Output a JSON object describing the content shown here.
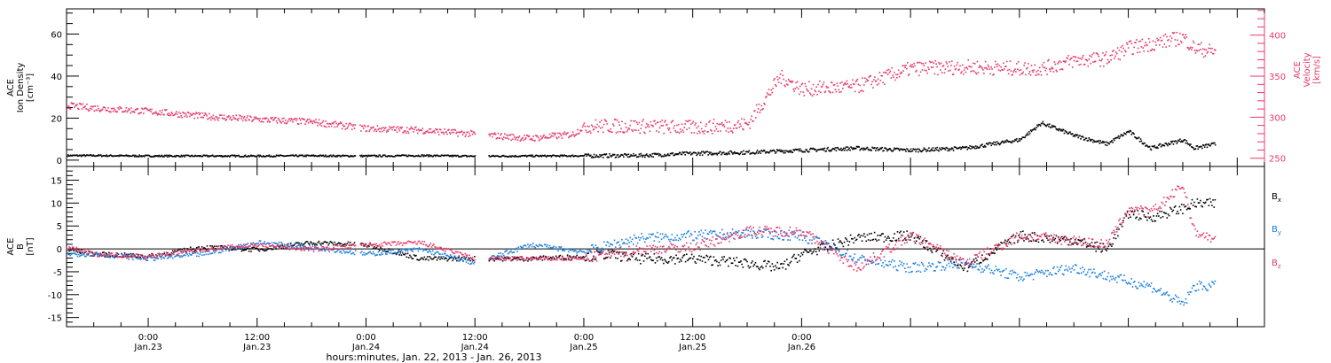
{
  "chart_data": [
    {
      "type": "scatter",
      "panel": "top",
      "left_axis": {
        "label_lines": [
          "ACE",
          "Ion Density",
          "[cm⁻³]"
        ],
        "ylim": [
          -3,
          72
        ],
        "ticks": [
          0,
          20,
          40,
          60
        ],
        "tick_labels": [
          "0",
          "20",
          "40",
          "60"
        ],
        "color": "#000000"
      },
      "right_axis": {
        "label_lines": [
          "ACE",
          "Velocity",
          "[km/s]"
        ],
        "ylim": [
          240,
          432
        ],
        "ticks": [
          250,
          300,
          350,
          400
        ],
        "tick_labels": [
          "250",
          "300",
          "350",
          "400"
        ],
        "color": "#e8396a"
      },
      "series": [
        {
          "axis": "left",
          "color": "#000000",
          "x": [
            -0.375,
            -0.25,
            0,
            0.25,
            0.5,
            0.75,
            1,
            1.25,
            1.5,
            1.75,
            2.0,
            2.25,
            2.5,
            2.75,
            3.0,
            3.25,
            3.5,
            3.75,
            4.0,
            4.1,
            4.25,
            4.4,
            4.5,
            4.6,
            4.75,
            4.8,
            4.9
          ],
          "values": [
            2.5,
            2.5,
            2.3,
            2.3,
            2.3,
            2.4,
            2.3,
            2.5,
            2.2,
            2.3,
            2.4,
            2.5,
            3.5,
            4,
            5,
            6,
            5,
            6,
            10,
            18,
            12,
            8,
            14,
            6,
            10,
            6,
            8
          ]
        },
        {
          "axis": "right",
          "color": "#e8396a",
          "x": [
            -0.375,
            -0.25,
            0,
            0.25,
            0.5,
            0.75,
            1,
            1.25,
            1.5,
            1.75,
            1.95,
            2.0,
            2.25,
            2.5,
            2.75,
            2.9,
            3.0,
            3.25,
            3.5,
            3.75,
            4.0,
            4.1,
            4.25,
            4.4,
            4.5,
            4.6,
            4.75,
            4.8,
            4.9
          ],
          "values": [
            315,
            312,
            308,
            302,
            298,
            295,
            287,
            285,
            280,
            275,
            280,
            290,
            290,
            288,
            292,
            350,
            335,
            338,
            360,
            362,
            360,
            360,
            370,
            372,
            385,
            390,
            398,
            385,
            380
          ]
        }
      ],
      "gaps": [
        [
          0.95,
          0.97
        ],
        [
          1.5,
          1.56
        ]
      ],
      "x_axis": {
        "xlim": [
          -0.375,
          5.125
        ]
      }
    },
    {
      "type": "scatter",
      "panel": "bottom",
      "left_axis": {
        "label_lines": [
          "ACE",
          "B",
          "[nT]"
        ],
        "ylim": [
          -17,
          18
        ],
        "ticks": [
          -15,
          -10,
          -5,
          0,
          5,
          10,
          15
        ],
        "tick_labels": [
          "-15",
          "-10",
          "-5",
          "0",
          "5",
          "10",
          "15"
        ]
      },
      "zero_line": true,
      "series": [
        {
          "name": "Bx",
          "label": "B",
          "sub": "x",
          "color": "#000000",
          "x": [
            -0.375,
            -0.25,
            0,
            0.25,
            0.5,
            0.75,
            1,
            1.25,
            1.5,
            1.75,
            2.0,
            2.1,
            2.25,
            2.5,
            2.75,
            2.9,
            3.0,
            3.25,
            3.5,
            3.75,
            4.0,
            4.25,
            4.4,
            4.5,
            4.6,
            4.75,
            4.8,
            4.9
          ],
          "values": [
            0,
            -1,
            -1.5,
            0.5,
            0,
            1.5,
            1,
            -2,
            -2,
            -2,
            -1.5,
            -1,
            -2,
            -2,
            -3,
            -4,
            -1,
            2.5,
            3,
            -4,
            3,
            2,
            0,
            8,
            7,
            9,
            10,
            10
          ]
        },
        {
          "name": "By",
          "label": "B",
          "sub": "y",
          "color": "#1a7fe0",
          "x": [
            -0.375,
            -0.25,
            0,
            0.25,
            0.5,
            0.75,
            1,
            1.25,
            1.5,
            1.75,
            2.0,
            2.25,
            2.5,
            2.75,
            3.0,
            3.25,
            3.5,
            3.75,
            4.0,
            4.25,
            4.5,
            4.6,
            4.75,
            4.8,
            4.9
          ],
          "values": [
            -1,
            -1,
            -2,
            -1,
            1.5,
            0.5,
            -1,
            0,
            -3,
            1,
            -0.5,
            2.5,
            3,
            3.5,
            3,
            -2,
            -4,
            -3,
            -6,
            -4,
            -7,
            -8,
            -12,
            -8,
            -8
          ]
        },
        {
          "name": "Bz",
          "label": "B",
          "sub": "z",
          "color": "#e8396a",
          "x": [
            -0.375,
            -0.25,
            0,
            0.25,
            0.5,
            0.75,
            1,
            1.25,
            1.5,
            1.75,
            2.0,
            2.25,
            2.5,
            2.75,
            3.0,
            3.25,
            3.5,
            3.75,
            4.0,
            4.25,
            4.4,
            4.5,
            4.6,
            4.75,
            4.8,
            4.9
          ],
          "values": [
            0.5,
            -1,
            -1.5,
            0,
            1,
            0,
            1,
            1.5,
            -2,
            -2,
            -2,
            0,
            0.5,
            4,
            4,
            -4,
            3,
            -3,
            3,
            2,
            1,
            9,
            8,
            14,
            4,
            2
          ]
        }
      ],
      "gaps": [
        [
          0.95,
          0.97
        ],
        [
          1.5,
          1.56
        ]
      ]
    }
  ],
  "x_axis": {
    "xlim": [
      -0.375,
      5.125
    ],
    "ticks": [
      0,
      0.5,
      1,
      1.5,
      2,
      2.5,
      3,
      3.5,
      4,
      4.5,
      5
    ],
    "time_labels": [
      "0:00",
      "12:00",
      "0:00",
      "12:00",
      "0:00",
      "12:00",
      "0:00"
    ],
    "date_labels": [
      "Jan.23",
      "Jan.23",
      "Jan.24",
      "Jan.24",
      "Jan.25",
      "Jan.25",
      "Jan.26"
    ],
    "label_ticks": [
      0,
      1,
      2,
      3,
      4,
      5,
      6
    ],
    "title": "hours:minutes, Jan. 22, 2013 - Jan. 26, 2013"
  }
}
